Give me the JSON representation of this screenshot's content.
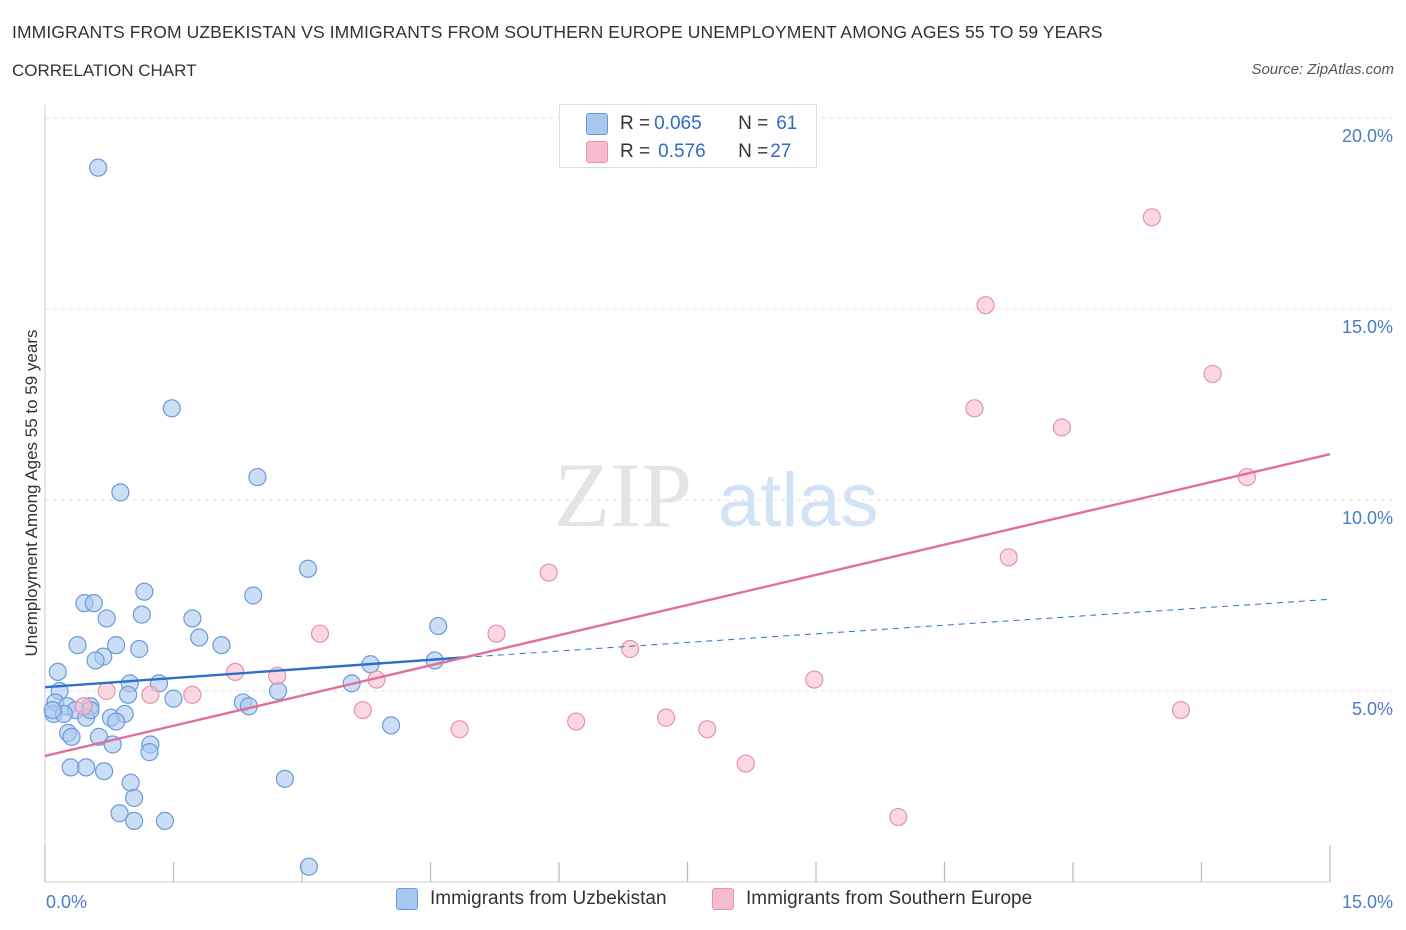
{
  "title": "IMMIGRANTS FROM UZBEKISTAN VS IMMIGRANTS FROM SOUTHERN EUROPE UNEMPLOYMENT AMONG AGES 55 TO 59 YEARS",
  "subtitle": "CORRELATION CHART",
  "source": "Source: ZipAtlas.com",
  "watermark": {
    "zip": "ZIP",
    "atlas": "atlas"
  },
  "legend_top": [
    {
      "r_label": "R = ",
      "r_value": "0.065",
      "n_label": "N = ",
      "n_value": "61",
      "color": "#a9c8f0"
    },
    {
      "r_label": "R = ",
      "r_value": "0.576",
      "n_label": "N = ",
      "n_value": "27",
      "color": "#f6bccd"
    }
  ],
  "colors": {
    "blue_fill": "#a9c8f0",
    "blue_stroke": "#6b9bd8",
    "blue_line": "#2f6fcc",
    "pink_fill": "#f6bccd",
    "pink_stroke": "#e592ae",
    "pink_line": "#e07099",
    "grid": "#e2e2e2",
    "axis_label": "#4a7cc7"
  },
  "chart_data": {
    "type": "scatter",
    "xlabel": "",
    "ylabel": "Unemployment Among Ages 55 to 59 years",
    "xlim": [
      0,
      15
    ],
    "ylim": [
      0,
      20
    ],
    "x_tick_labels": [
      {
        "value": 0,
        "label": "0.0%"
      },
      {
        "value": 15,
        "label": "15.0%"
      }
    ],
    "y_tick_labels": [
      {
        "value": 5,
        "label": "5.0%"
      },
      {
        "value": 10,
        "label": "10.0%"
      },
      {
        "value": 15,
        "label": "15.0%"
      },
      {
        "value": 20,
        "label": "20.0%"
      }
    ],
    "grid": true,
    "legend_position": "bottom",
    "series": [
      {
        "name": "Immigrants from Uzbekistan",
        "points": [
          [
            0.62,
            18.7
          ],
          [
            1.48,
            12.4
          ],
          [
            0.88,
            10.2
          ],
          [
            2.48,
            10.6
          ],
          [
            3.07,
            8.2
          ],
          [
            1.16,
            7.6
          ],
          [
            2.43,
            7.5
          ],
          [
            0.46,
            7.3
          ],
          [
            0.57,
            7.3
          ],
          [
            1.13,
            7.0
          ],
          [
            1.72,
            6.9
          ],
          [
            0.72,
            6.9
          ],
          [
            0.38,
            6.2
          ],
          [
            0.83,
            6.2
          ],
          [
            1.8,
            6.4
          ],
          [
            2.06,
            6.2
          ],
          [
            1.1,
            6.1
          ],
          [
            0.68,
            5.9
          ],
          [
            0.59,
            5.8
          ],
          [
            4.59,
            6.7
          ],
          [
            3.8,
            5.7
          ],
          [
            4.55,
            5.8
          ],
          [
            0.15,
            5.5
          ],
          [
            0.99,
            5.2
          ],
          [
            1.33,
            5.2
          ],
          [
            3.58,
            5.2
          ],
          [
            2.72,
            5.0
          ],
          [
            0.97,
            4.9
          ],
          [
            1.5,
            4.8
          ],
          [
            2.31,
            4.7
          ],
          [
            2.38,
            4.6
          ],
          [
            0.17,
            5.0
          ],
          [
            0.12,
            4.7
          ],
          [
            0.26,
            4.6
          ],
          [
            0.53,
            4.6
          ],
          [
            0.36,
            4.5
          ],
          [
            0.1,
            4.4
          ],
          [
            0.48,
            4.3
          ],
          [
            0.77,
            4.3
          ],
          [
            0.93,
            4.4
          ],
          [
            0.53,
            4.5
          ],
          [
            0.22,
            4.4
          ],
          [
            0.83,
            4.2
          ],
          [
            0.27,
            3.9
          ],
          [
            0.31,
            3.8
          ],
          [
            0.63,
            3.8
          ],
          [
            0.79,
            3.6
          ],
          [
            1.23,
            3.6
          ],
          [
            1.22,
            3.4
          ],
          [
            4.04,
            4.1
          ],
          [
            0.3,
            3.0
          ],
          [
            0.48,
            3.0
          ],
          [
            0.69,
            2.9
          ],
          [
            1.0,
            2.6
          ],
          [
            1.04,
            2.2
          ],
          [
            0.87,
            1.8
          ],
          [
            1.04,
            1.6
          ],
          [
            1.4,
            1.6
          ],
          [
            2.8,
            2.7
          ],
          [
            3.08,
            0.4
          ],
          [
            0.09,
            4.5
          ]
        ]
      },
      {
        "name": "Immigrants from Southern Europe",
        "points": [
          [
            12.92,
            17.4
          ],
          [
            10.98,
            15.1
          ],
          [
            13.63,
            13.3
          ],
          [
            10.85,
            12.4
          ],
          [
            11.87,
            11.9
          ],
          [
            14.03,
            10.6
          ],
          [
            11.25,
            8.5
          ],
          [
            5.88,
            8.1
          ],
          [
            3.21,
            6.5
          ],
          [
            5.27,
            6.5
          ],
          [
            6.83,
            6.1
          ],
          [
            2.22,
            5.5
          ],
          [
            2.71,
            5.4
          ],
          [
            3.87,
            5.3
          ],
          [
            8.98,
            5.3
          ],
          [
            0.72,
            5.0
          ],
          [
            1.23,
            4.9
          ],
          [
            1.72,
            4.9
          ],
          [
            3.71,
            4.5
          ],
          [
            4.84,
            4.0
          ],
          [
            6.2,
            4.2
          ],
          [
            7.25,
            4.3
          ],
          [
            7.73,
            4.0
          ],
          [
            8.18,
            3.1
          ],
          [
            9.96,
            1.7
          ],
          [
            13.26,
            4.5
          ],
          [
            0.45,
            4.6
          ]
        ]
      }
    ],
    "trend_lines": [
      {
        "series": "Immigrants from Uzbekistan",
        "x": [
          0,
          4.9
        ],
        "y": [
          5.1,
          5.88
        ],
        "style": "solid"
      },
      {
        "series": "Immigrants from Uzbekistan",
        "x": [
          4.9,
          15
        ],
        "y": [
          5.88,
          7.4
        ],
        "style": "dashed"
      },
      {
        "series": "Immigrants from Southern Europe",
        "x": [
          0,
          15
        ],
        "y": [
          3.3,
          11.2
        ],
        "style": "solid"
      }
    ]
  }
}
